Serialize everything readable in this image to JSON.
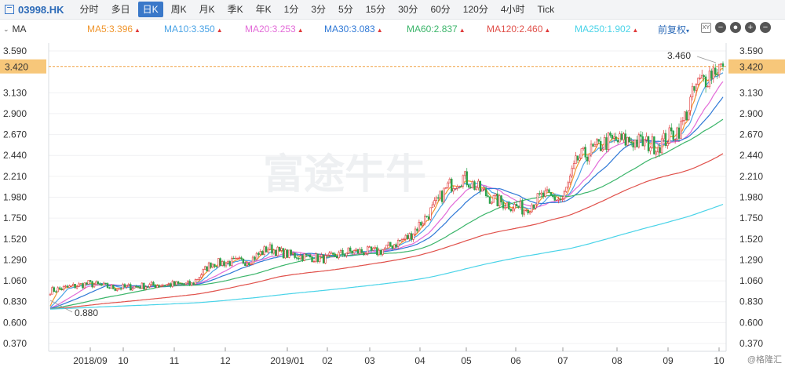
{
  "toolbar": {
    "symbol": "03998.HK",
    "tabs": [
      "分时",
      "多日",
      "日K",
      "周K",
      "月K",
      "季K",
      "年K",
      "1分",
      "3分",
      "5分",
      "15分",
      "30分",
      "60分",
      "120分",
      "4小时",
      "Tick"
    ],
    "active_tab": "日K"
  },
  "ma_bar": {
    "toggle_label": "MA",
    "items": [
      {
        "label": "MA5:3.396",
        "color": "#f0962e"
      },
      {
        "label": "MA10:3.350",
        "color": "#4aa3e6"
      },
      {
        "label": "MA20:3.253",
        "color": "#e36bd8"
      },
      {
        "label": "MA30:3.083",
        "color": "#2f78d6"
      },
      {
        "label": "MA60:2.837",
        "color": "#3bb56a"
      },
      {
        "label": "MA120:2.460",
        "color": "#e0504a"
      },
      {
        "label": "MA250:1.902",
        "color": "#49d3e8"
      }
    ],
    "adjust_label": "前复权"
  },
  "price_marker": "3.420",
  "annotations": {
    "high": "3.460",
    "low": "0.880"
  },
  "watermark": "富途牛牛",
  "source_label": "@格隆汇",
  "colors": {
    "up": "#e03a3a",
    "down": "#2aa24a",
    "accent": "#3a78c9",
    "marker": "#f7c77a"
  },
  "chart_data": {
    "type": "candlestick",
    "y_ticks": [
      "3.590",
      "3.420",
      "3.130",
      "2.900",
      "2.670",
      "2.440",
      "2.210",
      "1.980",
      "1.750",
      "1.520",
      "1.290",
      "1.060",
      "0.830",
      "0.600",
      "0.370"
    ],
    "x_ticks": [
      "2018/09",
      "10",
      "11",
      "12",
      "2019/01",
      "02",
      "03",
      "04",
      "05",
      "06",
      "07",
      "08",
      "09",
      "10"
    ],
    "ylim": [
      0.37,
      3.59
    ],
    "start_price": 0.95,
    "end_price": 3.42,
    "ma_last": {
      "MA5": 3.396,
      "MA10": 3.35,
      "MA20": 3.253,
      "MA30": 3.083,
      "MA60": 2.837,
      "MA120": 2.46,
      "MA250": 1.902
    },
    "path_points": [
      [
        0,
        0.95
      ],
      [
        20,
        1.03
      ],
      [
        34,
        0.98
      ],
      [
        60,
        1.02
      ],
      [
        74,
        1.02
      ],
      [
        84,
        1.25
      ],
      [
        104,
        1.28
      ],
      [
        114,
        1.42
      ],
      [
        124,
        1.35
      ],
      [
        144,
        1.3
      ],
      [
        156,
        1.38
      ],
      [
        172,
        1.38
      ],
      [
        188,
        1.55
      ],
      [
        200,
        1.85
      ],
      [
        208,
        2.1
      ],
      [
        216,
        2.2
      ],
      [
        232,
        1.95
      ],
      [
        248,
        1.85
      ],
      [
        258,
        2.0
      ],
      [
        268,
        1.95
      ],
      [
        276,
        2.4
      ],
      [
        292,
        2.6
      ],
      [
        304,
        2.6
      ],
      [
        318,
        2.55
      ],
      [
        330,
        2.75
      ],
      [
        338,
        3.2
      ],
      [
        348,
        3.4
      ],
      [
        352,
        3.42
      ]
    ]
  }
}
